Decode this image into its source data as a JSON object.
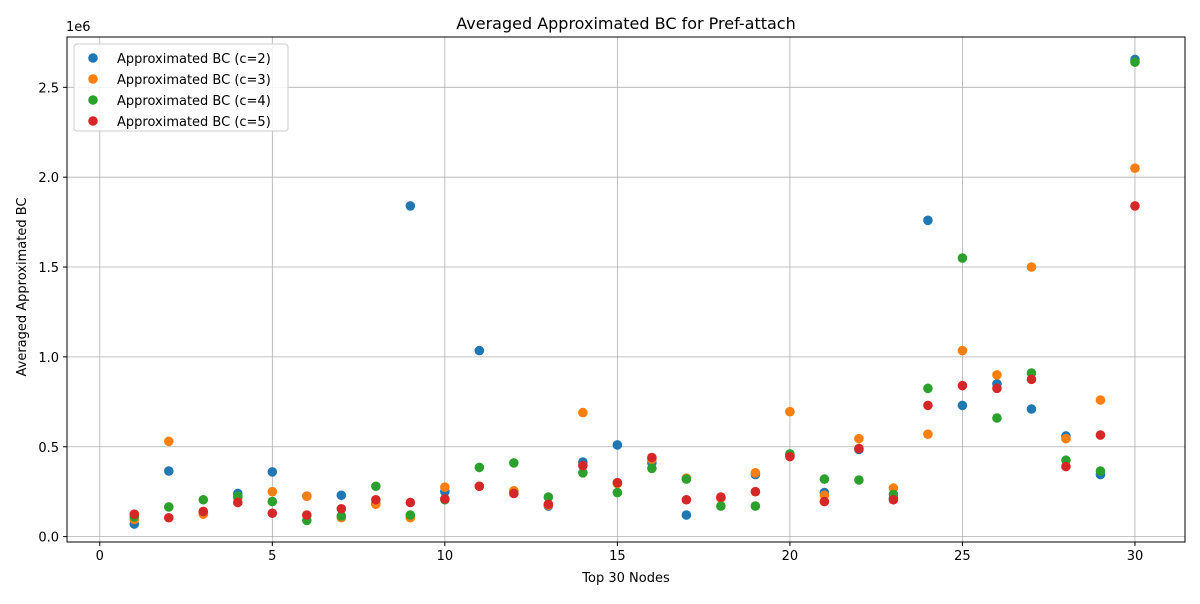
{
  "chart_data": {
    "type": "scatter",
    "title": "Averaged Approximated BC for Pref-attach",
    "xlabel": "Top 30 Nodes",
    "ylabel": "Averaged Approximated BC",
    "y_multiplier_label": "1e6",
    "xlim": [
      -0.95,
      31.45
    ],
    "ylim": [
      -0.03,
      2.78
    ],
    "x_ticks": [
      0,
      5,
      10,
      15,
      20,
      25,
      30
    ],
    "x_tick_labels": [
      "0",
      "5",
      "10",
      "15",
      "20",
      "25",
      "30"
    ],
    "y_ticks": [
      0.0,
      0.5,
      1.0,
      1.5,
      2.0,
      2.5
    ],
    "y_tick_labels": [
      "0.0",
      "0.5",
      "1.0",
      "1.5",
      "2.0",
      "2.5"
    ],
    "grid": true,
    "legend_position": "top-left",
    "x": [
      1,
      2,
      3,
      4,
      5,
      6,
      7,
      8,
      9,
      10,
      11,
      12,
      13,
      14,
      15,
      16,
      17,
      18,
      19,
      20,
      21,
      22,
      23,
      24,
      25,
      26,
      27,
      28,
      29,
      30
    ],
    "series": [
      {
        "name": "Approximated BC (c=2)",
        "color": "#1f77b4",
        "values": [
          0.07,
          0.365,
          0.13,
          0.24,
          0.36,
          0.225,
          0.23,
          0.185,
          1.84,
          0.25,
          1.035,
          0.25,
          0.17,
          0.415,
          0.51,
          0.41,
          0.12,
          0.215,
          0.345,
          0.455,
          0.245,
          0.485,
          0.215,
          1.76,
          0.73,
          0.85,
          0.71,
          0.56,
          0.345,
          2.655
        ]
      },
      {
        "name": "Approximated BC (c=3)",
        "color": "#ff7f0e",
        "values": [
          0.095,
          0.53,
          0.125,
          0.215,
          0.25,
          0.225,
          0.105,
          0.18,
          0.105,
          0.275,
          0.28,
          0.255,
          0.175,
          0.69,
          0.295,
          0.43,
          0.325,
          0.215,
          0.355,
          0.695,
          0.23,
          0.545,
          0.27,
          0.57,
          1.035,
          0.9,
          1.5,
          0.545,
          0.76,
          2.05
        ]
      },
      {
        "name": "Approximated BC (c=4)",
        "color": "#2ca02c",
        "values": [
          0.11,
          0.165,
          0.205,
          0.225,
          0.195,
          0.09,
          0.115,
          0.28,
          0.12,
          0.205,
          0.385,
          0.41,
          0.22,
          0.355,
          0.245,
          0.38,
          0.32,
          0.17,
          0.17,
          0.46,
          0.32,
          0.315,
          0.235,
          0.825,
          1.55,
          0.66,
          0.91,
          0.425,
          0.365,
          2.64
        ]
      },
      {
        "name": "Approximated BC (c=5)",
        "color": "#d62728",
        "values": [
          0.125,
          0.105,
          0.14,
          0.19,
          0.13,
          0.12,
          0.155,
          0.205,
          0.19,
          0.21,
          0.28,
          0.24,
          0.18,
          0.395,
          0.3,
          0.44,
          0.205,
          0.22,
          0.25,
          0.445,
          0.195,
          0.49,
          0.205,
          0.73,
          0.84,
          0.825,
          0.875,
          0.39,
          0.565,
          1.84
        ]
      }
    ]
  }
}
